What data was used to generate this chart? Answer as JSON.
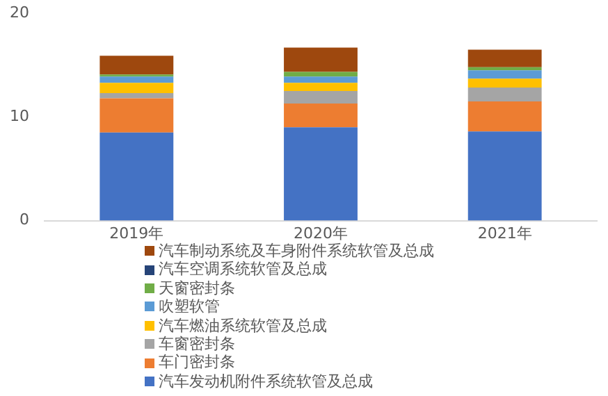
{
  "chart_data": {
    "type": "bar",
    "stacked": true,
    "categories": [
      "2019年",
      "2020年",
      "2021年"
    ],
    "series": [
      {
        "name": "汽车发动机附件系统软管及总成",
        "color": "#4472c4",
        "values": [
          8.5,
          9.0,
          8.6
        ]
      },
      {
        "name": "车门密封条",
        "color": "#ed7d31",
        "values": [
          3.3,
          2.3,
          2.9
        ]
      },
      {
        "name": "车窗密封条",
        "color": "#a5a5a5",
        "values": [
          0.5,
          1.2,
          1.35
        ]
      },
      {
        "name": "汽车燃油系统软管及总成",
        "color": "#ffc000",
        "values": [
          1.0,
          0.8,
          0.85
        ]
      },
      {
        "name": "吹塑软管",
        "color": "#5b9bd5",
        "values": [
          0.6,
          0.6,
          0.8
        ]
      },
      {
        "name": "天窗密封条",
        "color": "#70ad47",
        "values": [
          0.2,
          0.45,
          0.3
        ]
      },
      {
        "name": "汽车空调系统软管及总成",
        "color": "#264478",
        "values": [
          0,
          0,
          0
        ]
      },
      {
        "name": "汽车制动系统及车身附件系统软管及总成",
        "color": "#9e480e",
        "values": [
          1.8,
          2.35,
          1.7
        ]
      }
    ],
    "ylim": [
      0,
      20
    ],
    "yticks": [
      0,
      10,
      20
    ],
    "grid": false,
    "legend": "bottom"
  }
}
